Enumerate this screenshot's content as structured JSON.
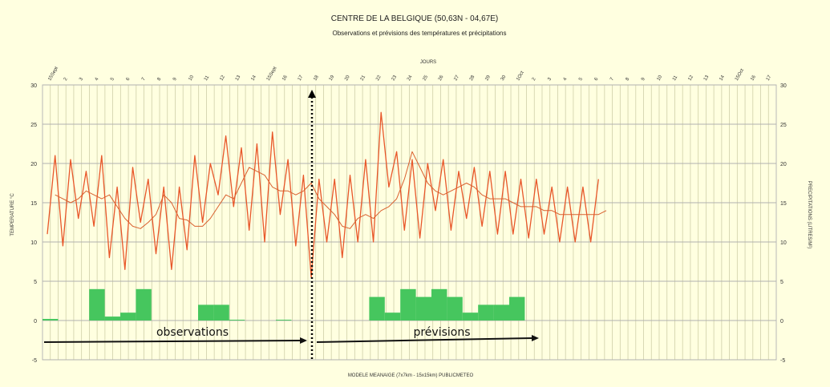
{
  "chart_data": {
    "type": "line",
    "title": "CENTRE DE LA BELGIQUE (50,63N - 04,67E)",
    "subtitle": "Observations et prévisions des températures et précipitations",
    "top_axis_label": "JOURS",
    "ylabel_left": "TEMPERATURE °C",
    "ylabel_right": "PRECIPITATIONS (LITRES/M²)",
    "footer": "MODELE MEANAIGE (7x7km - 15x15km) PUBLICMETEO",
    "ylim": [
      -5,
      30
    ],
    "y_ticks": [
      -5,
      0,
      5,
      10,
      15,
      20,
      25,
      30
    ],
    "grid": true,
    "day_labels": [
      "15Sept",
      "2",
      "3",
      "4",
      "5",
      "6",
      "7",
      "8",
      "9",
      "10",
      "11",
      "12",
      "13",
      "14",
      "15Sept",
      "16",
      "17",
      "18",
      "19",
      "20",
      "21",
      "22",
      "23",
      "24",
      "25",
      "26",
      "27",
      "28",
      "29",
      "30",
      "1Oct",
      "2",
      "3",
      "4",
      "5",
      "6",
      "7",
      "8",
      "9",
      "10",
      "11",
      "12",
      "13",
      "14",
      "15Oct",
      "16",
      "17"
    ],
    "series": [
      {
        "kind": "temperature",
        "color": "#e8572a",
        "values": [
          11,
          21,
          9.5,
          20.5,
          13,
          19,
          12,
          21,
          8,
          17,
          6.5,
          19.5,
          12.5,
          18,
          8.5,
          17,
          6.5,
          17,
          9,
          21,
          12.5,
          20,
          16,
          23.5,
          14.5,
          22,
          11.5,
          22.5,
          10,
          24,
          13.5,
          20.5,
          9.5,
          18.5,
          5.5,
          18,
          10,
          18,
          8,
          18.5,
          10,
          20.5,
          10,
          26.5,
          17,
          21.5,
          11.5,
          20.5,
          10.5,
          20,
          14,
          20.5,
          11.5,
          19,
          13,
          19.5,
          12,
          19,
          11,
          19,
          11,
          18,
          10.5,
          18,
          11,
          17,
          10,
          17,
          10,
          17,
          10,
          18
        ]
      },
      {
        "kind": "temperature-mean",
        "color": "#d9602e",
        "values": [
          16,
          15.5,
          15,
          15.5,
          16.5,
          16,
          15.5,
          16,
          14.5,
          13,
          12,
          11.7,
          12.5,
          13.5,
          16,
          15,
          13,
          12.8,
          12,
          12,
          13,
          14.5,
          16,
          15.5,
          17.5,
          19.5,
          19,
          18.5,
          17,
          16.5,
          16.5,
          16,
          16.5,
          17.5,
          15.5,
          14.5,
          13.5,
          12,
          11.7,
          13,
          13.5,
          13,
          14,
          14.5,
          15.5,
          18,
          21.5,
          19.5,
          17.5,
          16.5,
          16,
          16.5,
          17,
          17.5,
          17,
          16,
          15.5,
          15.5,
          15.5,
          15,
          14.5,
          14.5,
          14.5,
          14,
          14,
          13.5,
          13.5,
          13.5,
          13.5,
          13.5,
          13.5,
          14
        ]
      },
      {
        "kind": "precipitation",
        "color": "#46c65e",
        "values": [
          0.2,
          0,
          0,
          4,
          0.5,
          1,
          4,
          0,
          0,
          0,
          2,
          2,
          0.1,
          0,
          0,
          0.1,
          0,
          0,
          0,
          0,
          0,
          3,
          1,
          4,
          3,
          4,
          3,
          1,
          2,
          2,
          3,
          0
        ]
      }
    ],
    "annotations": [
      "observations",
      "prévisions"
    ]
  }
}
